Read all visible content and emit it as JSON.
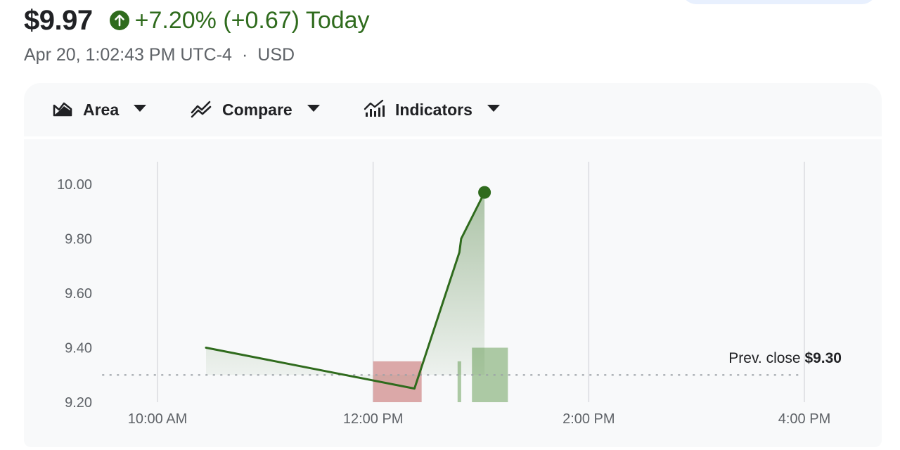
{
  "quote": {
    "price": "$9.97",
    "change": "+7.20% (+0.67) Today",
    "timestamp": "Apr 20, 1:02:43 PM UTC-4",
    "separator": "·",
    "currency": "USD"
  },
  "colors": {
    "up": "#2f6b1d",
    "down": "#d9a3a3",
    "volume_up": "#a8c69f",
    "grid": "#dadce0",
    "text": "#202124",
    "muted": "#5f6368"
  },
  "toolbar": {
    "area_label": "Area",
    "area_icon": "area-chart-icon",
    "compare_label": "Compare",
    "compare_icon": "compare-icon",
    "indicators_label": "Indicators",
    "indicators_icon": "indicators-icon"
  },
  "chart_data": {
    "type": "area",
    "x_ticks": [
      "10:00 AM",
      "12:00 PM",
      "2:00 PM",
      "4:00 PM"
    ],
    "y_ticks": [
      "9.20",
      "9.40",
      "9.60",
      "9.80",
      "10.00"
    ],
    "ylim": [
      9.2,
      10.03
    ],
    "xlim_minutes": [
      570,
      960
    ],
    "points": [
      {
        "t": "10:27 AM",
        "min": 627,
        "v": 9.4
      },
      {
        "t": "12:23 PM",
        "min": 743,
        "v": 9.25
      },
      {
        "t": "12:48 PM",
        "min": 768,
        "v": 9.75
      },
      {
        "t": "12:49 PM",
        "min": 769,
        "v": 9.8
      },
      {
        "t": "1:02 PM",
        "min": 782,
        "v": 9.97
      }
    ],
    "volume_bars": [
      {
        "from_min": 720,
        "to_min": 747,
        "top": 9.35,
        "direction": "down"
      },
      {
        "from_min": 767,
        "to_min": 769,
        "top": 9.35,
        "direction": "up"
      },
      {
        "from_min": 775,
        "to_min": 795,
        "top": 9.4,
        "direction": "up"
      }
    ],
    "prev_close": {
      "label": "Prev. close",
      "value": "$9.30",
      "v": 9.3
    },
    "grid": true,
    "legend": "none"
  }
}
